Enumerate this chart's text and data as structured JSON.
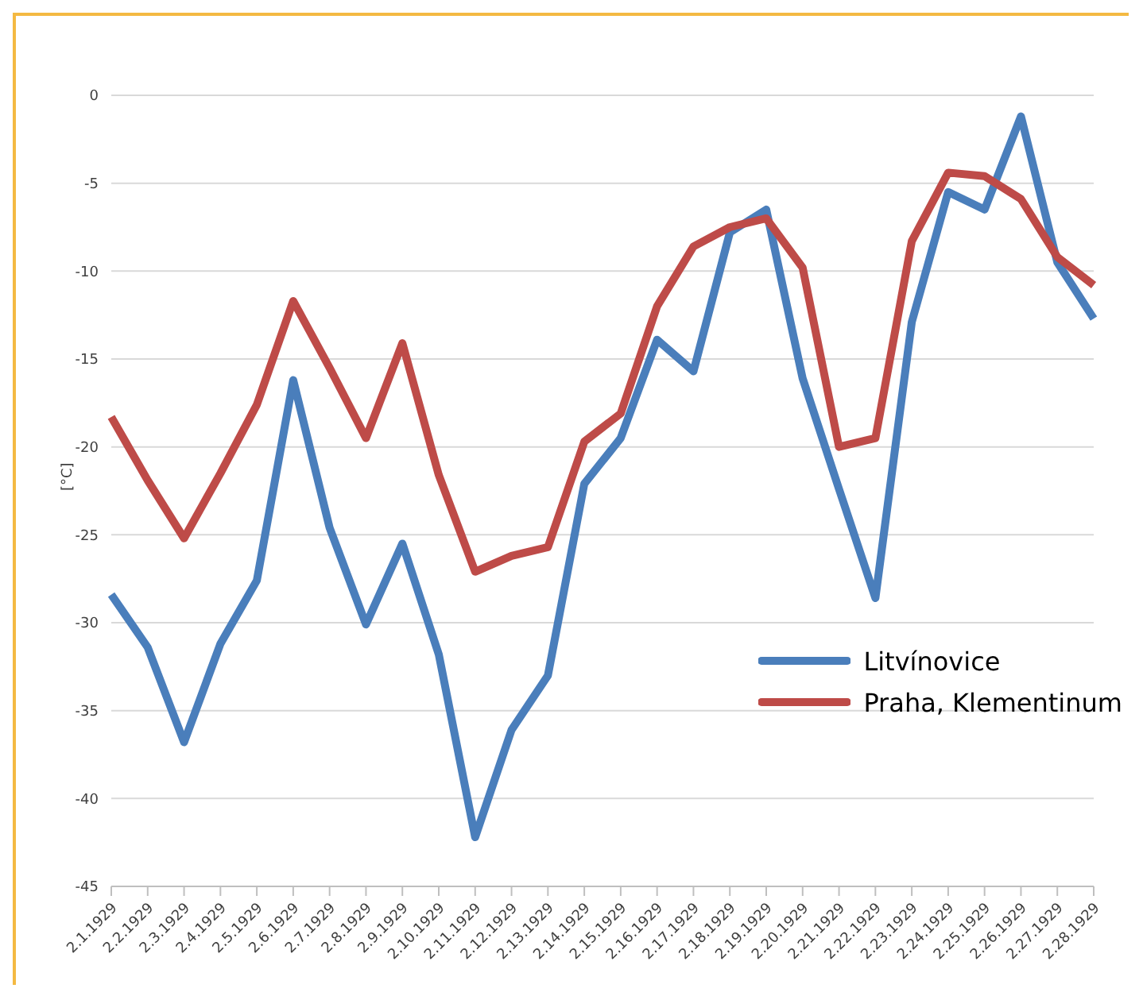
{
  "chart_data": {
    "type": "line",
    "ylabel": "[°C]",
    "categories": [
      "2.1.1929",
      "2.2.1929",
      "2.3.1929",
      "2.4.1929",
      "2.5.1929",
      "2.6.1929",
      "2.7.1929",
      "2.8.1929",
      "2.9.1929",
      "2.10.1929",
      "2.11.1929",
      "2.12.1929",
      "2.13.1929",
      "2.14.1929",
      "2.15.1929",
      "2.16.1929",
      "2.17.1929",
      "2.18.1929",
      "2.19.1929",
      "2.20.1929",
      "2.21.1929",
      "2.22.1929",
      "2.23.1929",
      "2.24.1929",
      "2.25.1929",
      "2.26.1929",
      "2.27.1929",
      "2.28.1929"
    ],
    "series": [
      {
        "name": "Litvínovice",
        "color": "#4a7ebb",
        "values": [
          -28.4,
          -31.4,
          -36.8,
          -31.2,
          -27.6,
          -16.2,
          -24.6,
          -30.1,
          -25.5,
          -31.8,
          -42.2,
          -36.1,
          -33.0,
          -22.1,
          -19.5,
          -13.9,
          -15.7,
          -7.8,
          -6.5,
          -16.1,
          -22.4,
          -28.6,
          -12.9,
          -5.5,
          -6.5,
          -1.2,
          -9.5,
          -12.7
        ]
      },
      {
        "name": "Praha, Klementinum",
        "color": "#be4b48",
        "values": [
          -18.3,
          -21.9,
          -25.2,
          -21.5,
          -17.6,
          -11.7,
          -15.5,
          -19.5,
          -14.1,
          -21.6,
          -27.1,
          -26.2,
          -25.7,
          -19.7,
          -18.1,
          -12.0,
          -8.6,
          -7.5,
          -7.0,
          -9.8,
          -20.0,
          -19.5,
          -8.3,
          -4.4,
          -4.6,
          -5.9,
          -9.2,
          -10.8
        ]
      }
    ],
    "ylim": [
      -45,
      0
    ],
    "yticks": [
      -45,
      -40,
      -35,
      -30,
      -25,
      -20,
      -15,
      -10,
      -5,
      0
    ],
    "grid": "y",
    "legend": "right",
    "marker": "none",
    "line_style": "solid"
  }
}
